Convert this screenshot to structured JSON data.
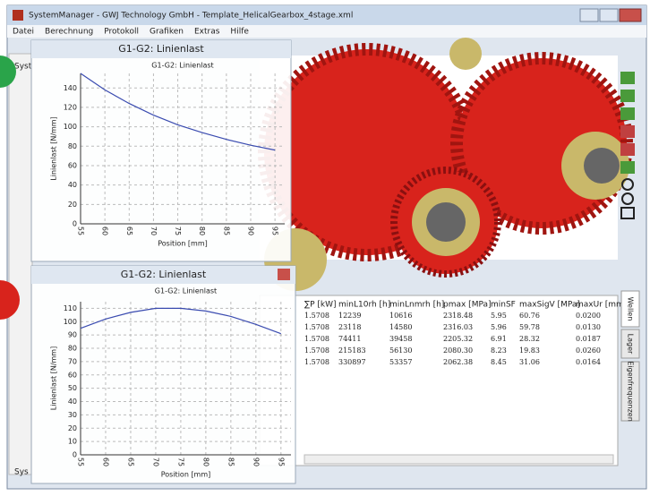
{
  "window": {
    "title": "SystemManager - GWJ Technology GmbH - Template_HelicalGearbox_4stage.xml",
    "menu": [
      "Datei",
      "Berechnung",
      "Protokoll",
      "Grafiken",
      "Extras",
      "Hilfe"
    ],
    "left_label": "Syst",
    "status": "Sys"
  },
  "plots": [
    {
      "type": "line",
      "window_title": "G1-G2: Linienlast",
      "title": "G1-G2: Linienlast",
      "x_label": "Position [mm]",
      "y_label": "Linienlast [N/mm]",
      "x": [
        55,
        60,
        65,
        70,
        75,
        80,
        85,
        90,
        95
      ],
      "values": [
        155,
        138,
        124,
        112,
        102,
        94,
        87,
        81,
        76
      ],
      "color": "#3a4bb0",
      "xlim": [
        55,
        97
      ],
      "xticks": [
        55,
        60,
        65,
        70,
        75,
        80,
        85,
        90,
        95
      ],
      "ylim": [
        0,
        155
      ],
      "yticks": [
        0,
        20,
        40,
        60,
        80,
        100,
        120,
        140
      ],
      "grid": true
    },
    {
      "type": "line",
      "window_title": "G1-G2: Linienlast",
      "title": "G1-G2: Linienlast",
      "x_label": "Position [mm]",
      "y_label": "Linienlast [N/mm]",
      "x": [
        55,
        60,
        65,
        70,
        75,
        80,
        85,
        90,
        95
      ],
      "values": [
        95,
        102,
        107,
        110,
        110,
        108,
        104,
        98,
        91
      ],
      "color": "#3a4bb0",
      "xlim": [
        55,
        97
      ],
      "xticks": [
        55,
        60,
        65,
        70,
        75,
        80,
        85,
        90,
        95
      ],
      "ylim": [
        0,
        115
      ],
      "yticks": [
        0,
        10,
        20,
        30,
        40,
        50,
        60,
        70,
        80,
        90,
        100,
        110
      ],
      "grid": true
    }
  ],
  "table": {
    "headers": [
      "∑P [kW]",
      "minL10rh [h]",
      "minLnmrh [h]",
      "pmax [MPa]",
      "minSF",
      "maxSigV [MPa]",
      "maxUr [mm]"
    ],
    "rows": [
      [
        "1.5708",
        "12239",
        "10616",
        "2318.48",
        "5.95",
        "60.76",
        "0.0200"
      ],
      [
        "1.5708",
        "23118",
        "14580",
        "2316.03",
        "5.96",
        "59.78",
        "0.0130"
      ],
      [
        "1.5708",
        "74411",
        "39458",
        "2205.32",
        "6.91",
        "28.32",
        "0.0187"
      ],
      [
        "1.5708",
        "215183",
        "56130",
        "2080.30",
        "8.23",
        "19.83",
        "0.0260"
      ],
      [
        "1.5708",
        "330897",
        "53357",
        "2062.38",
        "8.45",
        "31.06",
        "0.0164"
      ]
    ]
  },
  "tabs": [
    "Wellen",
    "Lager",
    "Eigenfrequenzen"
  ]
}
